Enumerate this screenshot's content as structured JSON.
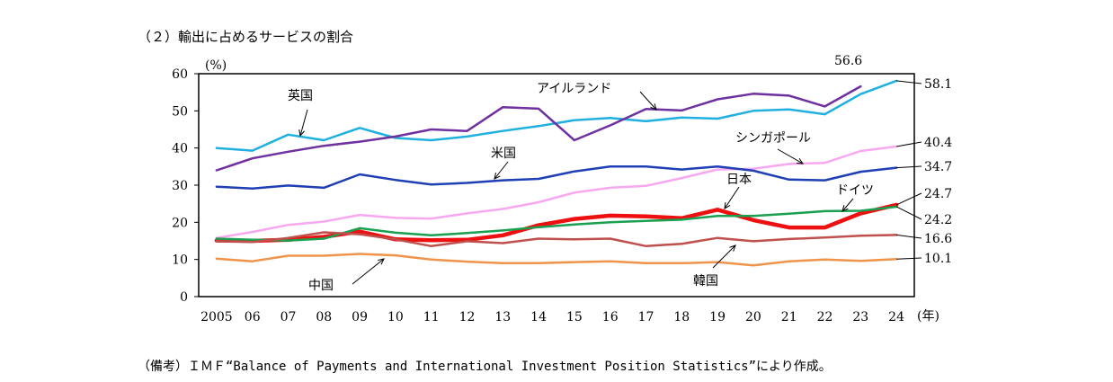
{
  "chart_data": {
    "type": "line",
    "title": "（２）輸出に占めるサービスの割合",
    "ylabel": "(%)",
    "xlabel": "(年)",
    "ylim": [
      0,
      60
    ],
    "yticks": [
      "0",
      "10",
      "20",
      "30",
      "40",
      "50",
      "60"
    ],
    "categories": [
      "2005",
      "06",
      "07",
      "08",
      "09",
      "10",
      "11",
      "12",
      "13",
      "14",
      "15",
      "16",
      "17",
      "18",
      "19",
      "20",
      "21",
      "22",
      "23",
      "24"
    ],
    "series": [
      {
        "name": "英国",
        "color": "#1fb0e0",
        "width": 2.5,
        "values": [
          40.0,
          39.3,
          43.6,
          42.1,
          45.4,
          42.7,
          42.1,
          43.1,
          44.6,
          45.9,
          47.5,
          48.1,
          47.2,
          48.2,
          47.9,
          50.0,
          50.4,
          49.1,
          54.5,
          58.1
        ],
        "end_label": "58.1"
      },
      {
        "name": "アイルランド",
        "color": "#7030a0",
        "width": 2.5,
        "values": [
          34.0,
          37.2,
          39.0,
          40.6,
          41.7,
          43.1,
          45.0,
          44.6,
          51.0,
          50.6,
          42.1,
          46.1,
          50.5,
          50.1,
          53.1,
          54.6,
          54.1,
          51.2,
          56.6,
          null
        ],
        "end_label": "56.6"
      },
      {
        "name": "シンガポール",
        "color": "#f7a8f0",
        "width": 2.5,
        "values": [
          15.8,
          17.4,
          19.3,
          20.2,
          22.0,
          21.2,
          21.0,
          22.4,
          23.6,
          25.4,
          28.0,
          29.3,
          29.8,
          31.9,
          34.2,
          34.4,
          35.7,
          36.0,
          39.2,
          40.4
        ],
        "end_label": "40.4"
      },
      {
        "name": "米国",
        "color": "#1f3fb5",
        "width": 2.5,
        "values": [
          29.6,
          29.1,
          29.9,
          29.3,
          32.9,
          31.4,
          30.2,
          30.6,
          31.3,
          31.7,
          33.7,
          35.0,
          35.0,
          34.2,
          35.0,
          33.9,
          31.5,
          31.3,
          33.6,
          34.7
        ],
        "end_label": "34.7"
      },
      {
        "name": "日本",
        "color": "#ee1010",
        "width": 4.5,
        "values": [
          15.1,
          15.0,
          15.3,
          16.1,
          17.5,
          15.4,
          15.2,
          15.3,
          16.5,
          19.2,
          20.9,
          21.8,
          21.6,
          21.1,
          23.4,
          20.6,
          18.6,
          18.6,
          22.4,
          24.7
        ],
        "end_label": "24.7"
      },
      {
        "name": "ドイツ",
        "color": "#1aa050",
        "width": 2.5,
        "values": [
          15.6,
          15.3,
          15.1,
          15.6,
          18.4,
          17.2,
          16.5,
          17.1,
          17.8,
          18.7,
          19.4,
          20.0,
          20.4,
          20.7,
          21.7,
          21.7,
          22.3,
          23.0,
          23.1,
          24.2
        ],
        "end_label": "24.2"
      },
      {
        "name": "韓国",
        "color": "#c0504d",
        "width": 2.5,
        "values": [
          14.9,
          14.7,
          15.8,
          17.3,
          16.8,
          15.4,
          13.6,
          14.9,
          14.4,
          15.6,
          15.4,
          15.6,
          13.6,
          14.2,
          15.8,
          14.9,
          15.5,
          15.9,
          16.4,
          16.6
        ],
        "end_label": "16.6"
      },
      {
        "name": "中国",
        "color": "#f0944a",
        "width": 2.5,
        "values": [
          10.2,
          9.5,
          11.0,
          11.0,
          11.5,
          11.1,
          10.0,
          9.4,
          9.0,
          9.0,
          9.3,
          9.5,
          9.0,
          9.0,
          9.3,
          8.4,
          9.5,
          10.0,
          9.6,
          10.1
        ],
        "end_label": "10.1"
      }
    ]
  },
  "footer_note": "（備考）ＩＭＦ“Balance of Payments and International Investment Position Statistics”により作成。"
}
